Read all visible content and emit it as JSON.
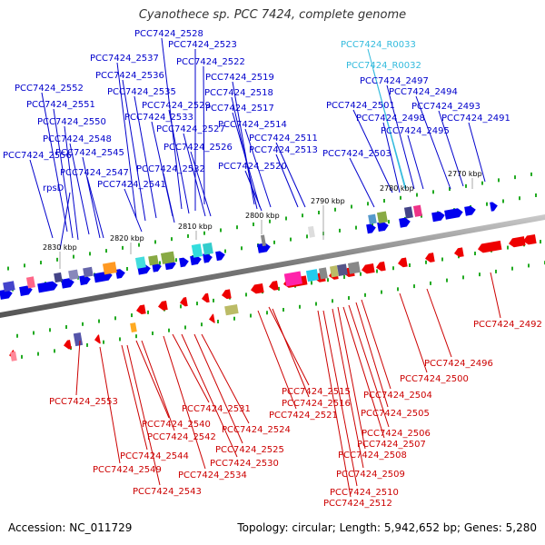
{
  "title": "Cyanothece sp. PCC 7424, complete genome",
  "footer": {
    "accession": "Accession: NC_011729",
    "stats": "Topology: circular; Length: 5,942,652 bp; Genes: 5,280"
  },
  "colors": {
    "forward_label": "#0000cc",
    "reverse_label": "#cc0000",
    "rna_label": "#33bbdd",
    "forward_gene": "#0000ee",
    "reverse_gene": "#ee0000",
    "backbone": "#888888",
    "tick": "#22aa22"
  },
  "kbp_labels": [
    "2770 kbp",
    "2780 kbp",
    "2790 kbp",
    "2800 kbp",
    "2810 kbp",
    "2820 kbp",
    "2830 kbp"
  ],
  "top_labels": [
    "PCC7424_2528",
    "PCC7424_2523",
    "PCC7424_2537",
    "PCC7424_2522",
    "PCC7424_2536",
    "PCC7424_2519",
    "PCC7424_2552",
    "PCC7424_2535",
    "PCC7424_2518",
    "PCC7424_2551",
    "PCC7424_2529",
    "PCC7424_2517",
    "PCC7424_2533",
    "PCC7424_2550",
    "PCC7424_2527",
    "PCC7424_2514",
    "PCC7424_2548",
    "PCC7424_2511",
    "PCC7424_2526",
    "PCC7424_2556",
    "PCC7424_2545",
    "PCC7424_2513",
    "PCC7424_2547",
    "PCC7424_2532",
    "PCC7424_2520",
    "PCC7424_2541",
    "rpsD",
    "PCC7424_R0033",
    "PCC7424_R0032",
    "PCC7424_2497",
    "PCC7424_2494",
    "PCC7424_2501",
    "PCC7424_2493",
    "PCC7424_2498",
    "PCC7424_2491",
    "PCC7424_2495",
    "PCC7424_2503"
  ],
  "bottom_labels": [
    "PCC7424_2492",
    "PCC7424_2496",
    "PCC7424_2500",
    "PCC7424_2553",
    "PCC7424_2515",
    "PCC7424_2504",
    "PCC7424_2516",
    "PCC7424_2531",
    "PCC7424_2521",
    "PCC7424_2505",
    "PCC7424_2540",
    "PCC7424_2524",
    "PCC7424_2506",
    "PCC7424_2542",
    "PCC7424_2507",
    "PCC7424_2525",
    "PCC7424_2508",
    "PCC7424_2544",
    "PCC7424_2530",
    "PCC7424_2549",
    "PCC7424_2534",
    "PCC7424_2509",
    "PCC7424_2543",
    "PCC7424_2510",
    "PCC7424_2512"
  ]
}
